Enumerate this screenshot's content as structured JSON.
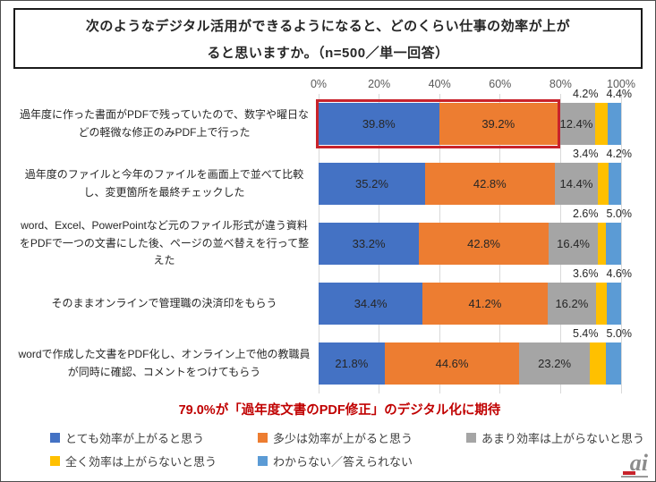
{
  "title": {
    "line1": "次のようなデジタル活用ができるようになると、どのくらい仕事の効率が上が",
    "line2": "ると思いますか。（n=500／単一回答）"
  },
  "chart_data": {
    "type": "bar",
    "stacked": true,
    "orientation": "horizontal",
    "title": "次のようなデジタル活用ができるようになると、どのくらい仕事の効率が上がると思いますか。（n=500／単一回答）",
    "xlim": [
      0,
      100
    ],
    "x_tick_labels": [
      "0%",
      "20%",
      "40%",
      "60%",
      "80%",
      "100%"
    ],
    "grid": true,
    "legend_position": "bottom",
    "value_suffix": "%",
    "categories": [
      "過年度に作った書面がPDFで残っていたので、数字や曜日などの軽微な修正のみPDF上で行った",
      "過年度のファイルと今年のファイルを画面上で並べて比較し、変更箇所を最終チェックした",
      "word、Excel、PowerPointなど元のファイル形式が違う資料をPDFで一つの文書にした後、ページの並べ替えを行って整えた",
      "そのままオンラインで管理職の決済印をもらう",
      "wordで作成した文書をPDF化し、オンライン上で他の教職員が同時に確認、コメントをつけてもらう"
    ],
    "series": [
      {
        "name": "とても効率が上がると思う",
        "color": "#4472C4",
        "values": [
          39.8,
          35.2,
          33.2,
          34.4,
          21.8
        ]
      },
      {
        "name": "多少は効率が上がると思う",
        "color": "#ED7D31",
        "values": [
          39.2,
          42.8,
          42.8,
          41.2,
          44.6
        ]
      },
      {
        "name": "あまり効率は上がらないと思う",
        "color": "#A5A5A5",
        "values": [
          12.4,
          14.4,
          16.4,
          16.2,
          23.2
        ]
      },
      {
        "name": "全く効率は上がらないと思う",
        "color": "#FFC000",
        "values": [
          4.2,
          3.4,
          2.6,
          3.6,
          5.4
        ]
      },
      {
        "name": "わからない／答えられない",
        "color": "#5B9BD5",
        "values": [
          4.4,
          4.2,
          5.0,
          4.6,
          5.0
        ]
      }
    ],
    "highlight_box": {
      "category_index": 0,
      "span_percent": 79.0,
      "covers_series": [
        "とても効率が上がると思う",
        "多少は効率が上がると思う"
      ],
      "color": "#C8232B"
    },
    "annotation": {
      "text": "79.0%が「過年度文書のPDF修正」のデジタル化に期待",
      "color": "#C00000"
    }
  },
  "logo": {
    "text": "ai"
  }
}
